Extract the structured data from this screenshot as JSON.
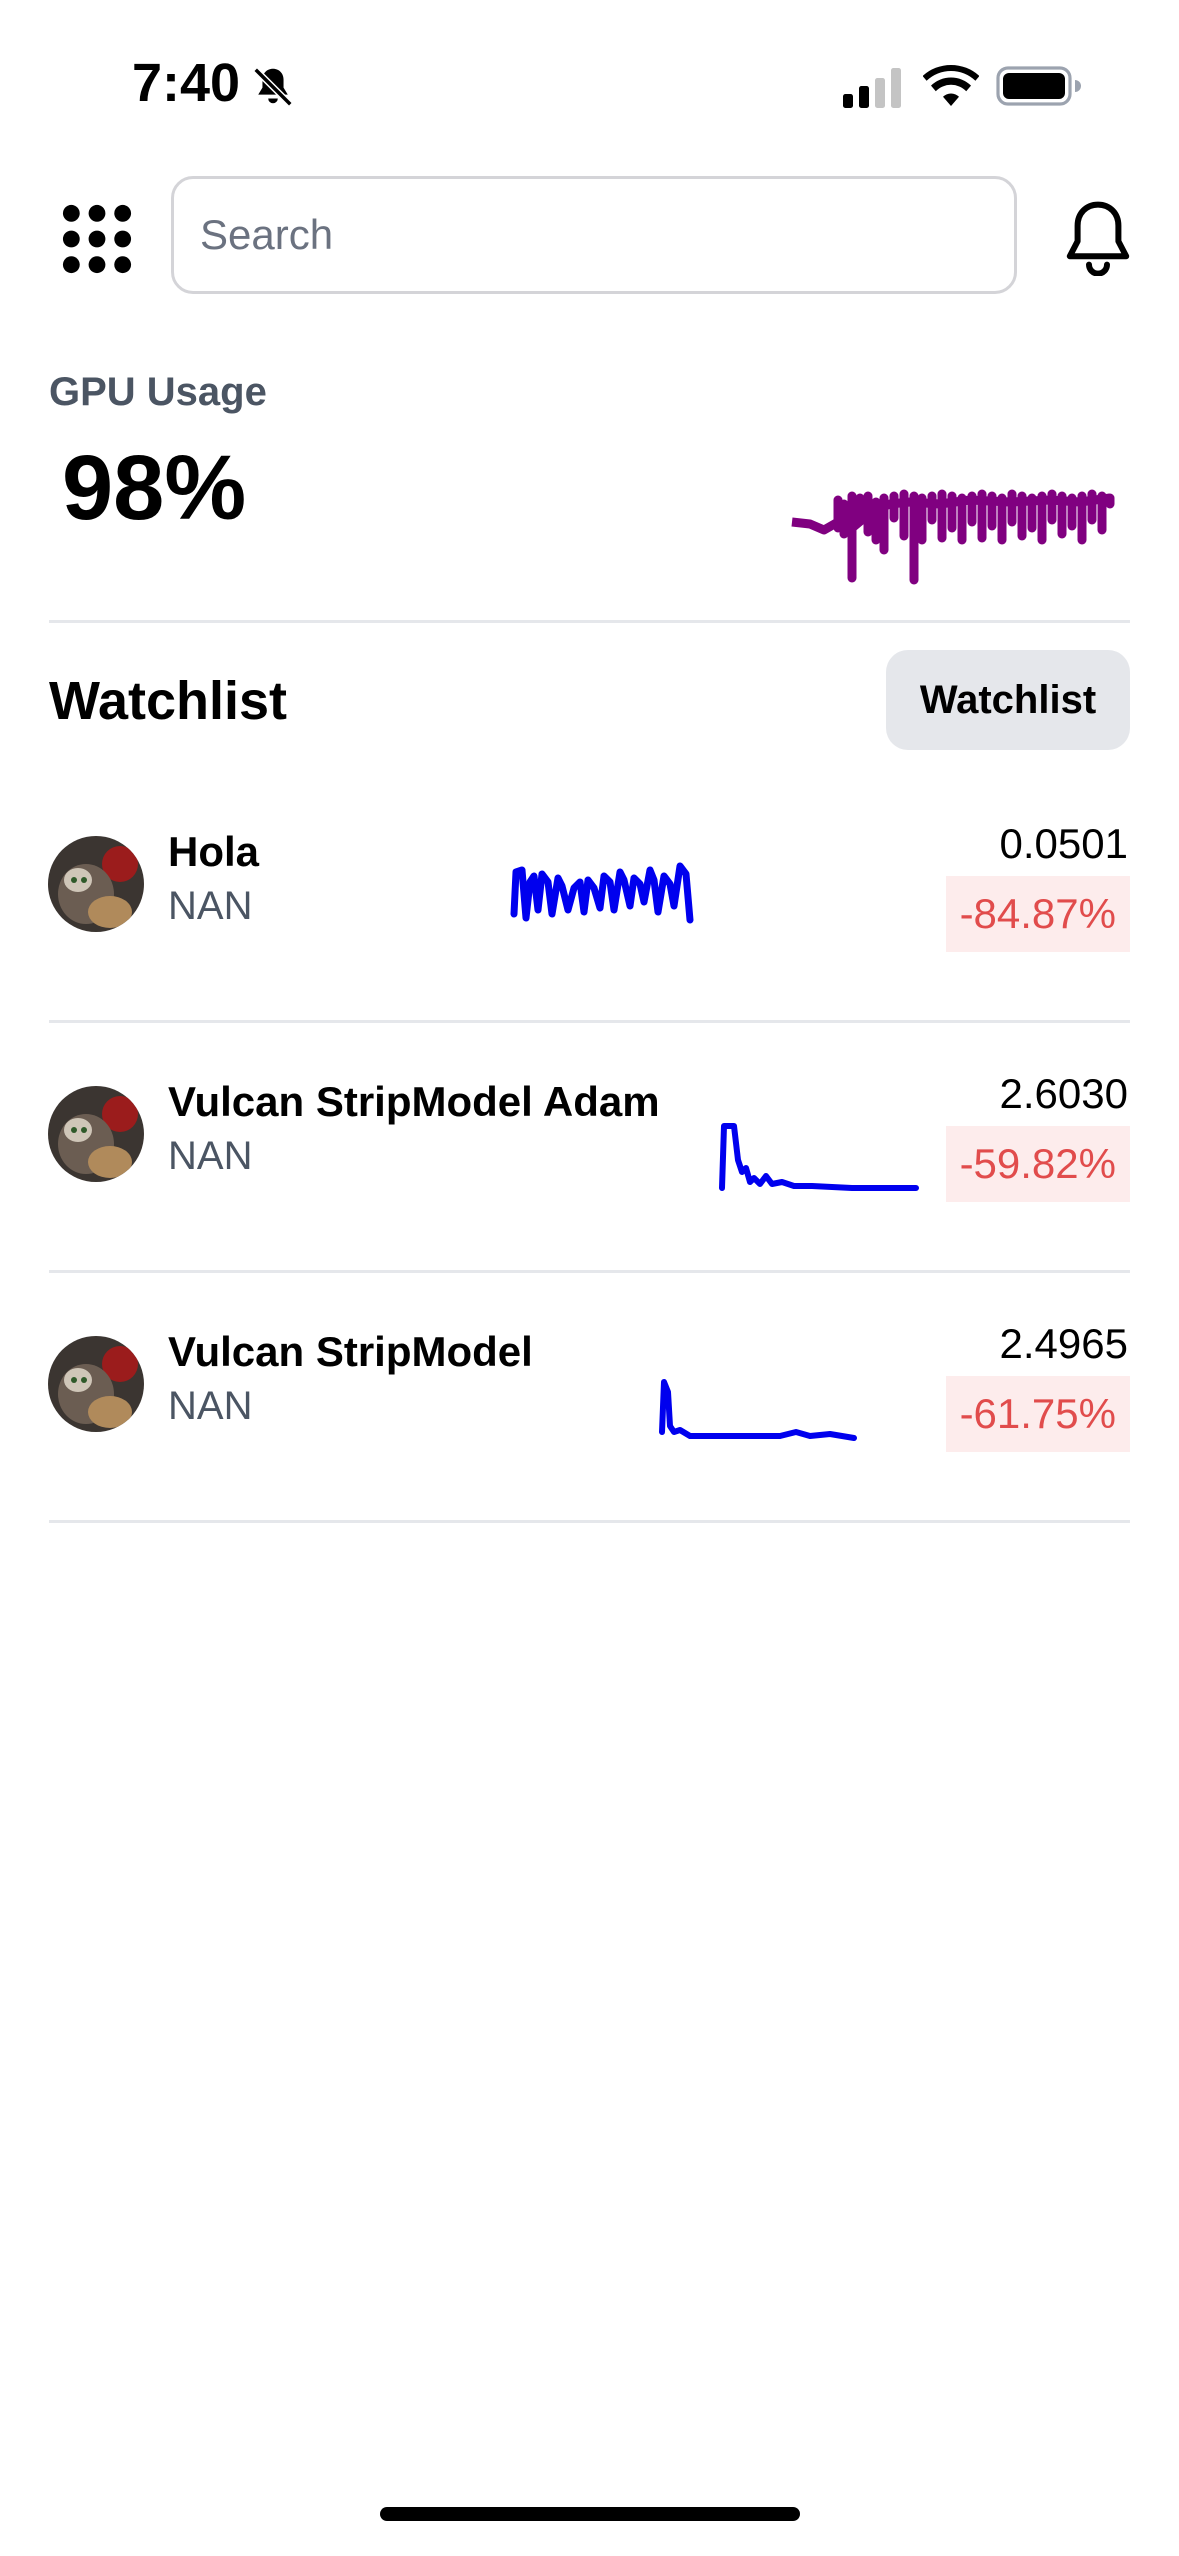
{
  "status_bar": {
    "time": "7:40",
    "icons": [
      "bell-slash-icon",
      "signal-icon",
      "wifi-icon",
      "battery-icon"
    ]
  },
  "header": {
    "menu_icon": "apps-grid-icon",
    "search": {
      "placeholder": "Search",
      "value": ""
    },
    "notification_icon": "bell-icon"
  },
  "gpu": {
    "label": "GPU Usage",
    "value": "98%",
    "color": "#800080"
  },
  "watchlist": {
    "title": "Watchlist",
    "button_label": "Watchlist",
    "items": [
      {
        "name": "Hola",
        "sub": "NAN",
        "price": "0.0501",
        "change": "-84.87%",
        "spark_color": "#0000ee"
      },
      {
        "name": "Vulcan StripModel Adam",
        "sub": "NAN",
        "price": "2.6030",
        "change": "-59.82%",
        "spark_color": "#0000ee"
      },
      {
        "name": "Vulcan StripModel",
        "sub": "NAN",
        "price": "2.4965",
        "change": "-61.75%",
        "spark_color": "#0000ee"
      }
    ]
  },
  "colors": {
    "negative_text": "#e14c4c",
    "negative_bg": "#fdecec",
    "divider": "#e5e7eb"
  }
}
